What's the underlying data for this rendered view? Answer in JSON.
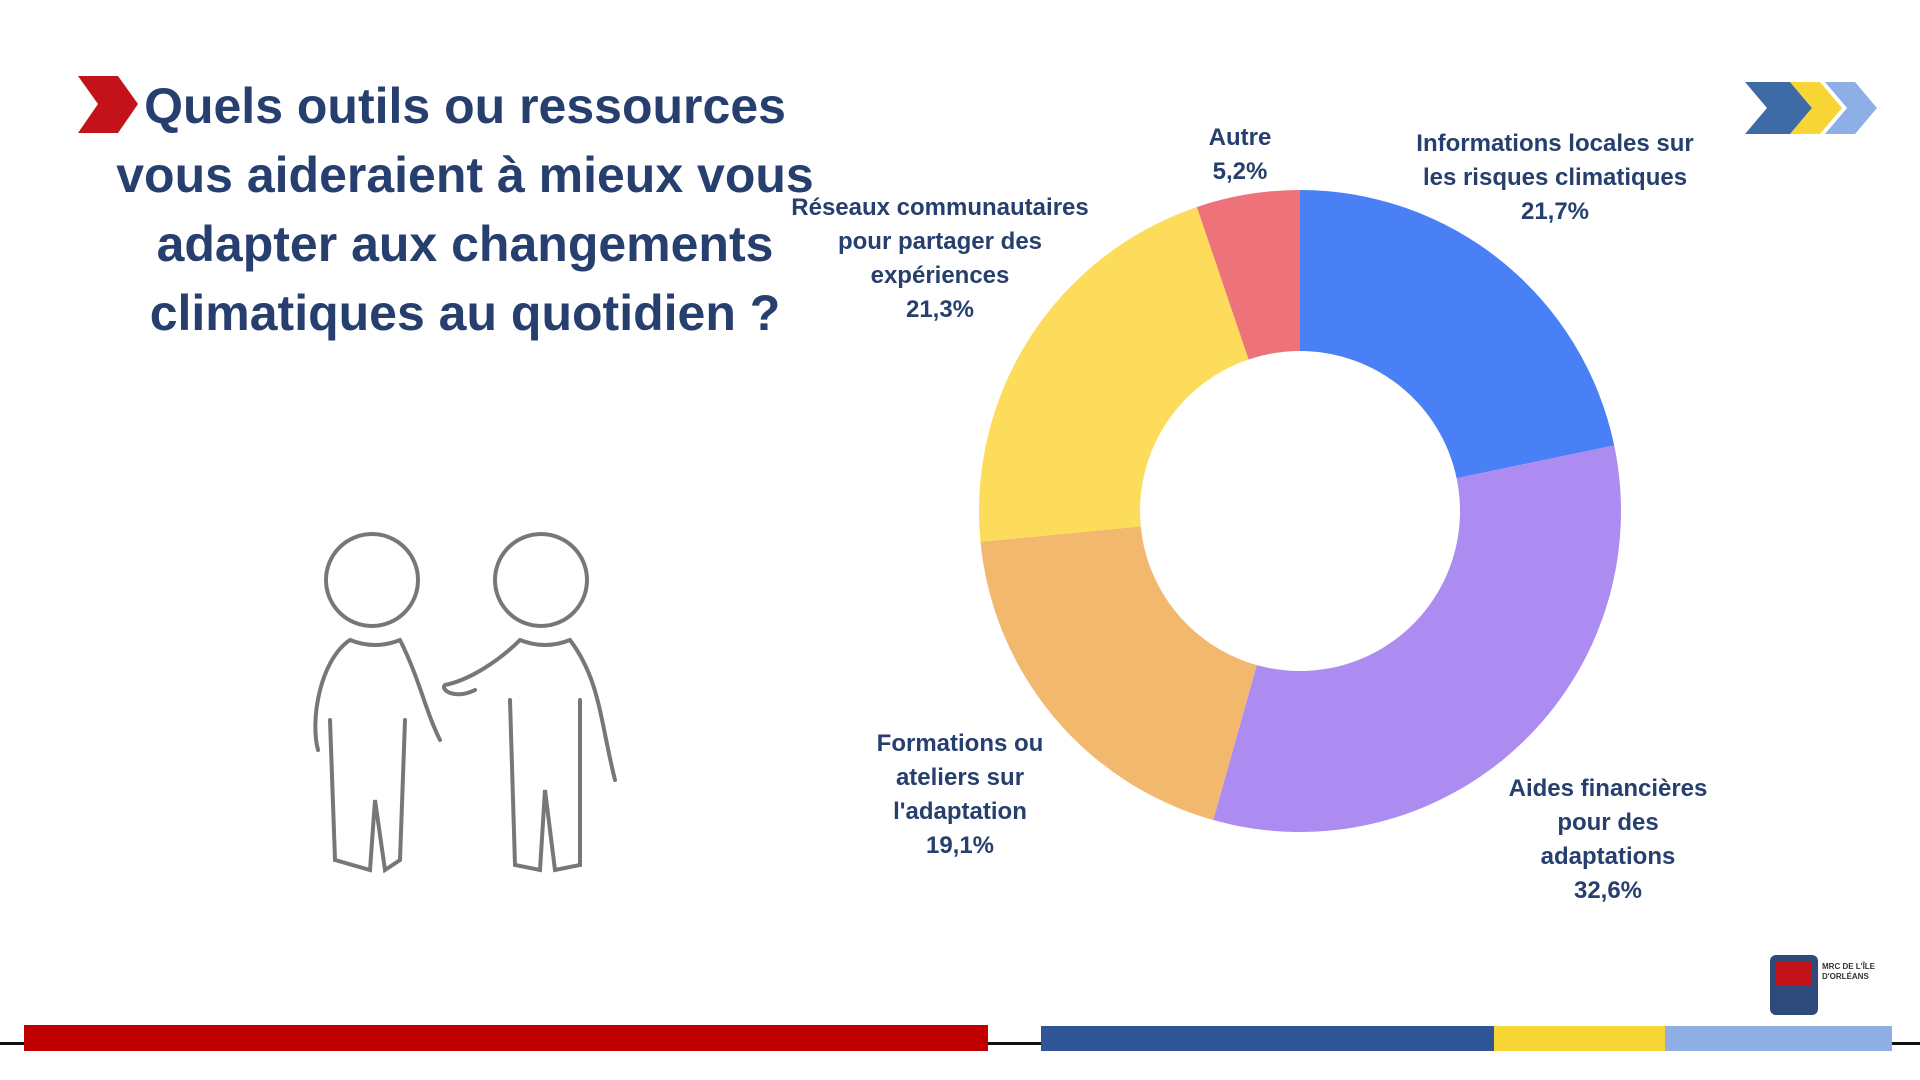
{
  "chart_data": {
    "type": "donut",
    "title": "Quels outils ou ressources vous aideraient à mieux vous adapter aux changements climatiques au quotidien ?",
    "categories": [
      "Informations locales sur les risques climatiques",
      "Aides financières pour des adaptations",
      "Formations ou ateliers sur l'adaptation",
      "Réseaux communautaires pour partager des expériences",
      "Autre"
    ],
    "values": [
      21.7,
      32.6,
      19.1,
      21.3,
      5.2
    ],
    "value_labels": [
      "21,7%",
      "32,6%",
      "19,1%",
      "21,3%",
      "5,2%"
    ],
    "colors": [
      "#4a80f5",
      "#ad8cf2",
      "#f2b86e",
      "#fddc5c",
      "#ee727a"
    ]
  },
  "logo_text": "MRC DE L'ÎLE D'ORLÉANS"
}
